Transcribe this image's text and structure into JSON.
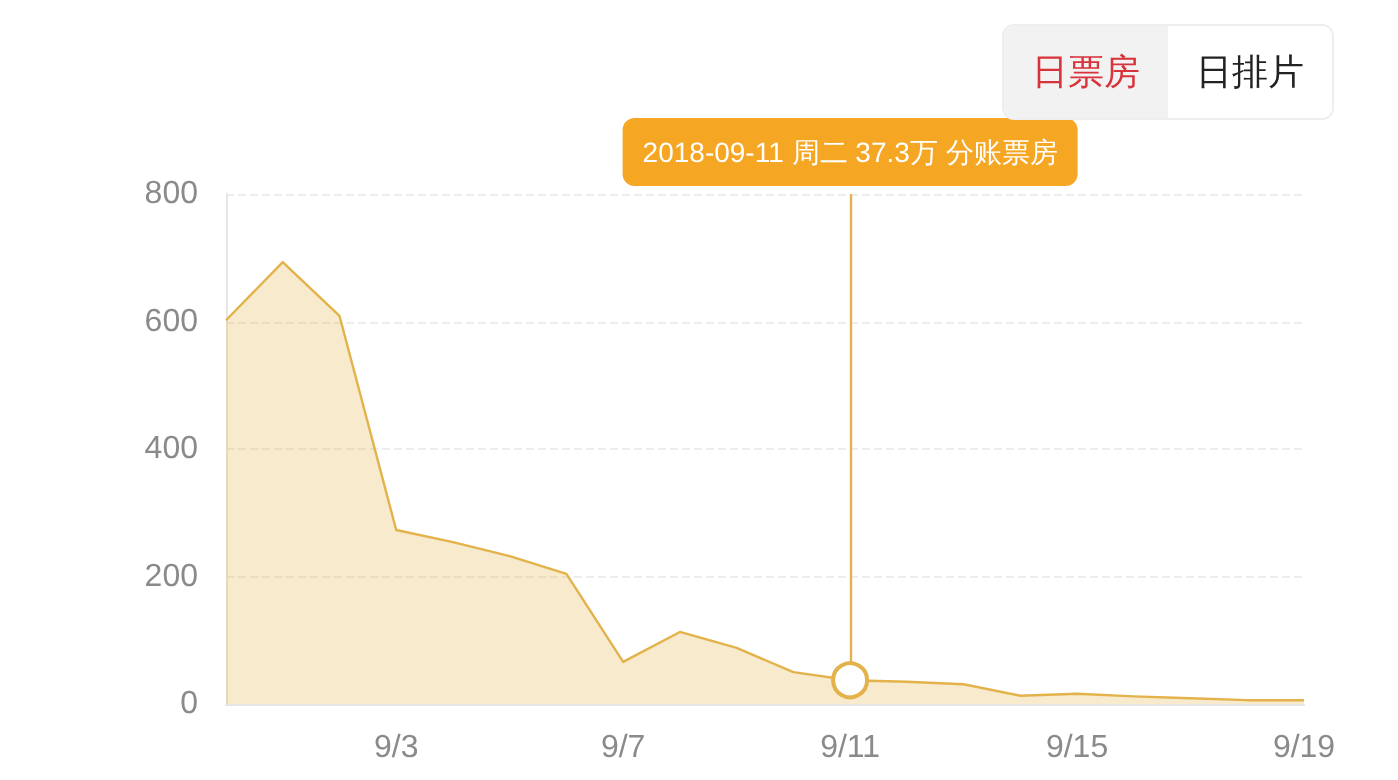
{
  "chart_data": {
    "type": "area",
    "x": [
      "2018-08-31",
      "2018-09-01",
      "2018-09-02",
      "2018-09-03",
      "2018-09-04",
      "2018-09-05",
      "2018-09-06",
      "2018-09-07",
      "2018-09-08",
      "2018-09-09",
      "2018-09-10",
      "2018-09-11",
      "2018-09-12",
      "2018-09-13",
      "2018-09-14",
      "2018-09-15",
      "2018-09-16",
      "2018-09-17",
      "2018-09-18",
      "2018-09-19"
    ],
    "series": [
      {
        "color": "#e3b24a",
        "values": [
          602,
          693,
          609,
          273,
          254,
          232,
          204,
          66,
          113,
          88,
          50,
          37.3,
          35,
          31,
          13,
          16,
          12,
          9,
          6,
          6
        ]
      }
    ],
    "xlim": [
      "2018-08-31",
      "2018-09-19"
    ],
    "xticks": [
      {
        "value": "2018-09-03",
        "label": "9/3"
      },
      {
        "value": "2018-09-07",
        "label": "9/7"
      },
      {
        "value": "2018-09-11",
        "label": "9/11"
      },
      {
        "value": "2018-09-15",
        "label": "9/15"
      },
      {
        "value": "2018-09-19",
        "label": "9/19"
      }
    ],
    "ylim": [
      0,
      800
    ],
    "yticks": [
      0,
      200,
      400,
      600,
      800
    ],
    "grid": "y",
    "marker": "none",
    "line_style": "solid",
    "annotations": [
      {
        "text": "2018-09-11 周二 37.3万 分账票房",
        "x": "2018-09-11",
        "y": 37.3
      },
      "日票房",
      "日排片"
    ]
  }
}
